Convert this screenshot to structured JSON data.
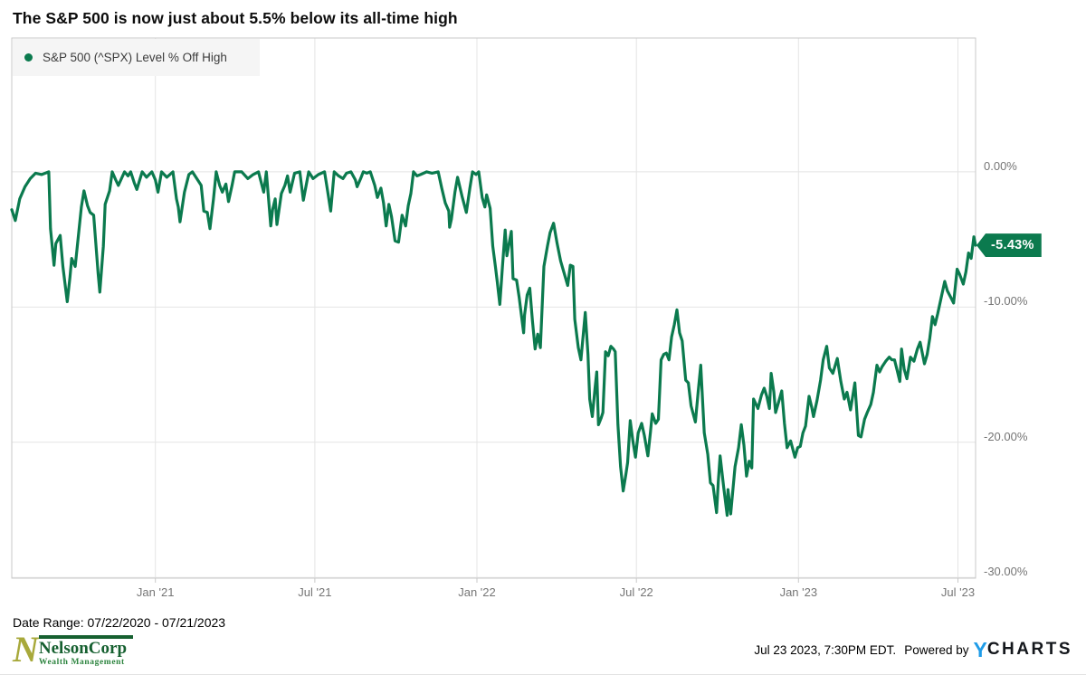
{
  "title": "The S&P 500 is now just about 5.5% below its all-time high",
  "legend": {
    "label": "S&P 500 (^SPX) Level % Off High"
  },
  "badge": {
    "label": "-5.43%",
    "value": -5.43
  },
  "date_range_label": "Date Range: 07/22/2020 - 07/21/2023",
  "logo": {
    "n": "N",
    "name": "NelsonCorp",
    "subtitle": "Wealth Management"
  },
  "footer": {
    "timestamp": "Jul 23 2023, 7:30PM EDT.",
    "powered_by": "Powered by",
    "brand_y": "Y",
    "brand_rest": "CHARTS"
  },
  "colors": {
    "line": "#0b7a4e",
    "badge_bg": "#0b7a4e",
    "legend_bg": "#f5f5f5",
    "grid": "#e4e4e4",
    "border": "#c9c9c9",
    "tick_text": "#757575",
    "nelson_olive": "#a8a93b",
    "nelson_green": "#166030",
    "nelson_light_green": "#2e8540",
    "ycharts_blue": "#1f9ce8"
  },
  "chart_data": {
    "type": "line",
    "title": "S&P 500 (^SPX) Level % Off High",
    "series_name": "S&P 500 (^SPX) Level % Off High",
    "unit": "%",
    "legend_position": "top-left",
    "grid": true,
    "x_axis": {
      "start": "07/22/2020",
      "end": "07/21/2023",
      "span_days": 1094,
      "ticks": [
        {
          "label": "Jan '21",
          "day": 163
        },
        {
          "label": "Jul '21",
          "day": 344
        },
        {
          "label": "Jan '22",
          "day": 528
        },
        {
          "label": "Jul '22",
          "day": 709
        },
        {
          "label": "Jan '23",
          "day": 893
        },
        {
          "label": "Jul '23",
          "day": 1074
        }
      ]
    },
    "y_axis": {
      "ymax": 9.9,
      "ymin": -30.05,
      "ticks": [
        {
          "label": "0.00%",
          "value": 0
        },
        {
          "label": "-10.00%",
          "value": -10
        },
        {
          "label": "-20.00%",
          "value": -20
        },
        {
          "label": "-30.00%",
          "value": -30
        }
      ]
    },
    "last_value": -5.43,
    "points": [
      [
        0,
        -2.8
      ],
      [
        4,
        -3.6
      ],
      [
        9,
        -2.0
      ],
      [
        15,
        -1.1
      ],
      [
        21,
        -0.5
      ],
      [
        27,
        -0.1
      ],
      [
        34,
        -0.2
      ],
      [
        42,
        0.0
      ],
      [
        44,
        -4.2
      ],
      [
        48,
        -6.9
      ],
      [
        50,
        -5.3
      ],
      [
        55,
        -4.7
      ],
      [
        58,
        -7.0
      ],
      [
        63,
        -9.6
      ],
      [
        66,
        -7.8
      ],
      [
        68,
        -6.4
      ],
      [
        72,
        -7.0
      ],
      [
        79,
        -2.6
      ],
      [
        82,
        -1.4
      ],
      [
        86,
        -2.5
      ],
      [
        89,
        -3.0
      ],
      [
        93,
        -3.2
      ],
      [
        98,
        -7.5
      ],
      [
        100,
        -8.9
      ],
      [
        104,
        -5.5
      ],
      [
        106,
        -2.4
      ],
      [
        111,
        -1.4
      ],
      [
        114,
        0.0
      ],
      [
        118,
        -0.6
      ],
      [
        121,
        -1.0
      ],
      [
        128,
        0.0
      ],
      [
        132,
        -0.3
      ],
      [
        135,
        0.0
      ],
      [
        139,
        -0.8
      ],
      [
        142,
        -1.3
      ],
      [
        148,
        0.0
      ],
      [
        153,
        -0.4
      ],
      [
        159,
        0.0
      ],
      [
        163,
        -0.6
      ],
      [
        166,
        -1.5
      ],
      [
        170,
        0.0
      ],
      [
        176,
        -0.4
      ],
      [
        183,
        0.0
      ],
      [
        187,
        -2.0
      ],
      [
        189,
        -2.6
      ],
      [
        191,
        -3.7
      ],
      [
        196,
        -1.5
      ],
      [
        201,
        -0.2
      ],
      [
        205,
        0.0
      ],
      [
        212,
        -0.7
      ],
      [
        215,
        -1.0
      ],
      [
        218,
        -2.9
      ],
      [
        222,
        -3.0
      ],
      [
        225,
        -4.2
      ],
      [
        229,
        -2.0
      ],
      [
        232,
        0.0
      ],
      [
        236,
        -1.0
      ],
      [
        239,
        -1.5
      ],
      [
        243,
        -0.9
      ],
      [
        246,
        -2.2
      ],
      [
        250,
        -1.0
      ],
      [
        253,
        0.0
      ],
      [
        261,
        0.0
      ],
      [
        268,
        -0.5
      ],
      [
        274,
        -0.2
      ],
      [
        280,
        0.0
      ],
      [
        286,
        -1.5
      ],
      [
        289,
        0.0
      ],
      [
        294,
        -4.0
      ],
      [
        296,
        -2.8
      ],
      [
        299,
        -2.0
      ],
      [
        301,
        -3.9
      ],
      [
        306,
        -1.6
      ],
      [
        310,
        -1.0
      ],
      [
        313,
        -0.3
      ],
      [
        316,
        -1.5
      ],
      [
        321,
        -0.1
      ],
      [
        327,
        0.0
      ],
      [
        331,
        -2.1
      ],
      [
        337,
        0.0
      ],
      [
        342,
        -0.5
      ],
      [
        348,
        -0.2
      ],
      [
        355,
        0.0
      ],
      [
        358,
        -1.2
      ],
      [
        362,
        -2.9
      ],
      [
        366,
        0.0
      ],
      [
        371,
        -0.3
      ],
      [
        376,
        -0.5
      ],
      [
        380,
        -0.1
      ],
      [
        385,
        0.0
      ],
      [
        390,
        -0.6
      ],
      [
        392,
        -1.1
      ],
      [
        396,
        -0.5
      ],
      [
        399,
        0.0
      ],
      [
        403,
        -0.1
      ],
      [
        407,
        0.0
      ],
      [
        412,
        -1.0
      ],
      [
        415,
        -1.9
      ],
      [
        419,
        -1.2
      ],
      [
        422,
        -2.3
      ],
      [
        425,
        -4.0
      ],
      [
        428,
        -2.4
      ],
      [
        431,
        -3.3
      ],
      [
        435,
        -5.1
      ],
      [
        439,
        -5.2
      ],
      [
        443,
        -3.2
      ],
      [
        447,
        -4.0
      ],
      [
        450,
        -2.5
      ],
      [
        453,
        -1.6
      ],
      [
        456,
        0.0
      ],
      [
        460,
        -0.3
      ],
      [
        464,
        -0.2
      ],
      [
        471,
        0.0
      ],
      [
        477,
        -0.1
      ],
      [
        484,
        0.0
      ],
      [
        488,
        -1.2
      ],
      [
        492,
        -2.3
      ],
      [
        496,
        -2.9
      ],
      [
        497,
        -4.1
      ],
      [
        499,
        -3.5
      ],
      [
        503,
        -1.5
      ],
      [
        506,
        -0.4
      ],
      [
        511,
        -1.8
      ],
      [
        516,
        -3.0
      ],
      [
        520,
        -1.2
      ],
      [
        523,
        0.0
      ],
      [
        527,
        -0.2
      ],
      [
        530,
        0.0
      ],
      [
        534,
        -1.9
      ],
      [
        537,
        -2.6
      ],
      [
        539,
        -1.7
      ],
      [
        543,
        -2.7
      ],
      [
        546,
        -5.5
      ],
      [
        549,
        -7.0
      ],
      [
        551,
        -8.1
      ],
      [
        554,
        -9.8
      ],
      [
        557,
        -7.0
      ],
      [
        560,
        -4.3
      ],
      [
        562,
        -6.2
      ],
      [
        567,
        -4.4
      ],
      [
        569,
        -7.9
      ],
      [
        573,
        -8.0
      ],
      [
        576,
        -9.3
      ],
      [
        581,
        -11.9
      ],
      [
        582,
        -10.6
      ],
      [
        585,
        -9.1
      ],
      [
        588,
        -8.6
      ],
      [
        591,
        -11.0
      ],
      [
        594,
        -13.1
      ],
      [
        597,
        -12.0
      ],
      [
        600,
        -13.0
      ],
      [
        604,
        -7.0
      ],
      [
        608,
        -5.5
      ],
      [
        611,
        -4.5
      ],
      [
        615,
        -3.8
      ],
      [
        619,
        -5.3
      ],
      [
        623,
        -6.6
      ],
      [
        627,
        -7.5
      ],
      [
        631,
        -8.4
      ],
      [
        634,
        -6.9
      ],
      [
        637,
        -7.0
      ],
      [
        639,
        -10.9
      ],
      [
        643,
        -13.0
      ],
      [
        646,
        -13.9
      ],
      [
        649,
        -11.8
      ],
      [
        651,
        -10.4
      ],
      [
        654,
        -13.5
      ],
      [
        656,
        -16.8
      ],
      [
        659,
        -18.1
      ],
      [
        662,
        -16.0
      ],
      [
        664,
        -14.8
      ],
      [
        666,
        -18.7
      ],
      [
        669,
        -18.2
      ],
      [
        671,
        -17.8
      ],
      [
        674,
        -13.3
      ],
      [
        677,
        -13.6
      ],
      [
        680,
        -12.9
      ],
      [
        683,
        -13.1
      ],
      [
        685,
        -13.3
      ],
      [
        688,
        -18.7
      ],
      [
        691,
        -21.8
      ],
      [
        694,
        -23.6
      ],
      [
        697,
        -22.4
      ],
      [
        699,
        -21.5
      ],
      [
        702,
        -18.4
      ],
      [
        705,
        -19.9
      ],
      [
        708,
        -21.1
      ],
      [
        711,
        -19.3
      ],
      [
        715,
        -18.6
      ],
      [
        718,
        -19.5
      ],
      [
        722,
        -21.0
      ],
      [
        725,
        -19.2
      ],
      [
        727,
        -17.9
      ],
      [
        731,
        -18.6
      ],
      [
        734,
        -18.3
      ],
      [
        737,
        -13.9
      ],
      [
        740,
        -13.5
      ],
      [
        743,
        -13.4
      ],
      [
        746,
        -13.9
      ],
      [
        749,
        -12.2
      ],
      [
        752,
        -11.3
      ],
      [
        755,
        -10.2
      ],
      [
        758,
        -11.9
      ],
      [
        761,
        -12.5
      ],
      [
        765,
        -15.4
      ],
      [
        768,
        -15.6
      ],
      [
        771,
        -17.3
      ],
      [
        776,
        -18.5
      ],
      [
        779,
        -16.3
      ],
      [
        782,
        -14.3
      ],
      [
        786,
        -19.3
      ],
      [
        790,
        -20.9
      ],
      [
        793,
        -23.0
      ],
      [
        796,
        -23.2
      ],
      [
        800,
        -25.2
      ],
      [
        802,
        -22.9
      ],
      [
        804,
        -21.0
      ],
      [
        808,
        -23.3
      ],
      [
        812,
        -25.4
      ],
      [
        813,
        -23.5
      ],
      [
        816,
        -25.3
      ],
      [
        818,
        -23.9
      ],
      [
        821,
        -21.8
      ],
      [
        825,
        -20.4
      ],
      [
        828,
        -18.7
      ],
      [
        831,
        -20.2
      ],
      [
        834,
        -22.5
      ],
      [
        837,
        -21.4
      ],
      [
        840,
        -21.9
      ],
      [
        842,
        -16.8
      ],
      [
        847,
        -17.5
      ],
      [
        851,
        -16.5
      ],
      [
        854,
        -16.0
      ],
      [
        857,
        -16.6
      ],
      [
        860,
        -17.5
      ],
      [
        862,
        -14.9
      ],
      [
        865,
        -16.3
      ],
      [
        867,
        -17.8
      ],
      [
        871,
        -16.9
      ],
      [
        874,
        -16.2
      ],
      [
        877,
        -18.6
      ],
      [
        880,
        -20.4
      ],
      [
        884,
        -19.9
      ],
      [
        889,
        -21.1
      ],
      [
        892,
        -20.4
      ],
      [
        895,
        -20.3
      ],
      [
        898,
        -19.3
      ],
      [
        901,
        -18.8
      ],
      [
        905,
        -16.6
      ],
      [
        908,
        -17.4
      ],
      [
        910,
        -18.1
      ],
      [
        914,
        -16.9
      ],
      [
        918,
        -15.4
      ],
      [
        921,
        -13.9
      ],
      [
        925,
        -12.9
      ],
      [
        928,
        -14.5
      ],
      [
        932,
        -14.9
      ],
      [
        937,
        -13.8
      ],
      [
        941,
        -15.5
      ],
      [
        945,
        -16.8
      ],
      [
        948,
        -16.3
      ],
      [
        952,
        -17.6
      ],
      [
        957,
        -15.6
      ],
      [
        961,
        -19.5
      ],
      [
        964,
        -19.6
      ],
      [
        968,
        -18.3
      ],
      [
        971,
        -17.8
      ],
      [
        975,
        -17.2
      ],
      [
        978,
        -16.3
      ],
      [
        982,
        -14.3
      ],
      [
        985,
        -14.8
      ],
      [
        988,
        -14.4
      ],
      [
        992,
        -14.0
      ],
      [
        996,
        -13.7
      ],
      [
        999,
        -13.9
      ],
      [
        1002,
        -13.9
      ],
      [
        1005,
        -14.7
      ],
      [
        1008,
        -15.5
      ],
      [
        1010,
        -13.1
      ],
      [
        1013,
        -14.6
      ],
      [
        1016,
        -15.3
      ],
      [
        1020,
        -13.7
      ],
      [
        1024,
        -14.0
      ],
      [
        1028,
        -13.1
      ],
      [
        1031,
        -12.6
      ],
      [
        1036,
        -14.2
      ],
      [
        1039,
        -13.5
      ],
      [
        1042,
        -12.3
      ],
      [
        1045,
        -10.7
      ],
      [
        1048,
        -11.3
      ],
      [
        1051,
        -10.5
      ],
      [
        1055,
        -9.3
      ],
      [
        1059,
        -8.1
      ],
      [
        1062,
        -8.8
      ],
      [
        1066,
        -9.3
      ],
      [
        1069,
        -9.7
      ],
      [
        1073,
        -7.2
      ],
      [
        1076,
        -7.6
      ],
      [
        1080,
        -8.3
      ],
      [
        1083,
        -7.4
      ],
      [
        1086,
        -6.0
      ],
      [
        1089,
        -6.4
      ],
      [
        1092,
        -4.8
      ],
      [
        1094,
        -5.43
      ]
    ]
  }
}
